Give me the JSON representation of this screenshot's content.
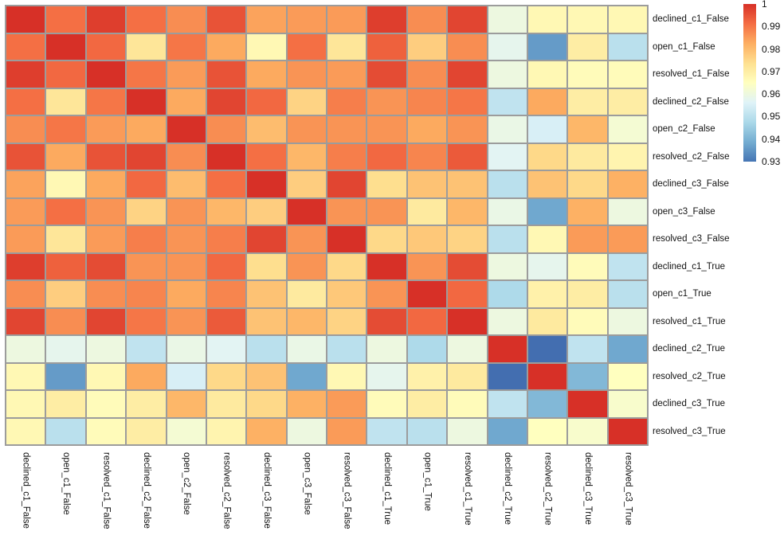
{
  "figure": {
    "background": "#ffffff",
    "grid_line_color": "#9c9c9c",
    "label_color": "#111111"
  },
  "chart_data": {
    "type": "heatmap",
    "title": "",
    "legend_position": "right",
    "grid": true,
    "x_labels": [
      "declined_c1_False",
      "open_c1_False",
      "resolved_c1_False",
      "declined_c2_False",
      "open_c2_False",
      "resolved_c2_False",
      "declined_c3_False",
      "open_c3_False",
      "resolved_c3_False",
      "declined_c1_True",
      "open_c1_True",
      "resolved_c1_True",
      "declined_c2_True",
      "resolved_c2_True",
      "declined_c3_True",
      "resolved_c3_True"
    ],
    "y_labels": [
      "declined_c1_False",
      "open_c1_False",
      "resolved_c1_False",
      "declined_c2_False",
      "open_c2_False",
      "resolved_c2_False",
      "declined_c3_False",
      "open_c3_False",
      "resolved_c3_False",
      "declined_c1_True",
      "open_c1_True",
      "resolved_c1_True",
      "declined_c2_True",
      "resolved_c2_True",
      "declined_c3_True",
      "resolved_c3_True"
    ],
    "matrix": [
      [
        1.0,
        0.991,
        0.998,
        0.991,
        0.987,
        0.995,
        0.984,
        0.985,
        0.985,
        0.998,
        0.987,
        0.997,
        0.96,
        0.967,
        0.967,
        0.967
      ],
      [
        0.991,
        1.0,
        0.992,
        0.972,
        0.99,
        0.983,
        0.967,
        0.991,
        0.972,
        0.993,
        0.977,
        0.987,
        0.958,
        0.936,
        0.97,
        0.95
      ],
      [
        0.998,
        0.992,
        1.0,
        0.99,
        0.985,
        0.995,
        0.983,
        0.986,
        0.985,
        0.996,
        0.987,
        0.997,
        0.96,
        0.967,
        0.966,
        0.966
      ],
      [
        0.991,
        0.972,
        0.99,
        1.0,
        0.983,
        0.997,
        0.992,
        0.976,
        0.989,
        0.986,
        0.988,
        0.99,
        0.951,
        0.983,
        0.97,
        0.97
      ],
      [
        0.987,
        0.99,
        0.985,
        0.983,
        1.0,
        0.987,
        0.98,
        0.986,
        0.986,
        0.986,
        0.983,
        0.986,
        0.959,
        0.955,
        0.981,
        0.962
      ],
      [
        0.995,
        0.983,
        0.995,
        0.997,
        0.987,
        1.0,
        0.991,
        0.981,
        0.989,
        0.992,
        0.988,
        0.994,
        0.957,
        0.975,
        0.971,
        0.968
      ],
      [
        0.984,
        0.967,
        0.983,
        0.992,
        0.98,
        0.991,
        1.0,
        0.977,
        0.997,
        0.974,
        0.979,
        0.979,
        0.95,
        0.979,
        0.975,
        0.982
      ],
      [
        0.985,
        0.991,
        0.986,
        0.976,
        0.986,
        0.981,
        0.977,
        1.0,
        0.986,
        0.986,
        0.971,
        0.981,
        0.959,
        0.938,
        0.982,
        0.96
      ],
      [
        0.985,
        0.972,
        0.985,
        0.989,
        0.986,
        0.989,
        0.997,
        0.986,
        1.0,
        0.975,
        0.978,
        0.976,
        0.95,
        0.967,
        0.985,
        0.985
      ],
      [
        0.998,
        0.993,
        0.996,
        0.986,
        0.986,
        0.992,
        0.974,
        0.986,
        0.975,
        1.0,
        0.986,
        0.996,
        0.96,
        0.958,
        0.966,
        0.951
      ],
      [
        0.987,
        0.977,
        0.987,
        0.988,
        0.983,
        0.988,
        0.979,
        0.971,
        0.978,
        0.986,
        1.0,
        0.992,
        0.948,
        0.969,
        0.97,
        0.95
      ],
      [
        0.997,
        0.987,
        0.997,
        0.99,
        0.986,
        0.994,
        0.979,
        0.981,
        0.976,
        0.996,
        0.992,
        1.0,
        0.96,
        0.971,
        0.966,
        0.96
      ],
      [
        0.96,
        0.958,
        0.96,
        0.951,
        0.959,
        0.957,
        0.95,
        0.959,
        0.95,
        0.96,
        0.948,
        0.96,
        1.0,
        0.929,
        0.951,
        0.938
      ],
      [
        0.967,
        0.936,
        0.967,
        0.983,
        0.955,
        0.975,
        0.979,
        0.938,
        0.967,
        0.958,
        0.969,
        0.971,
        0.929,
        1.0,
        0.941,
        0.965
      ],
      [
        0.967,
        0.97,
        0.966,
        0.97,
        0.981,
        0.971,
        0.975,
        0.982,
        0.985,
        0.966,
        0.97,
        0.966,
        0.951,
        0.941,
        1.0,
        0.963
      ],
      [
        0.967,
        0.95,
        0.966,
        0.97,
        0.962,
        0.968,
        0.982,
        0.96,
        0.985,
        0.951,
        0.95,
        0.96,
        0.938,
        0.965,
        0.963,
        1.0
      ]
    ],
    "colorbar": {
      "vmin": 0.93,
      "vmax": 1.0,
      "tick_values": [
        1,
        0.99,
        0.98,
        0.97,
        0.96,
        0.95,
        0.94,
        0.93
      ],
      "tick_labels": [
        "1",
        "0.99",
        "0.98",
        "0.97",
        "0.96",
        "0.95",
        "0.94",
        "0.93"
      ]
    },
    "colormap": {
      "name": "RdYlBu_r",
      "stops_low_to_high": [
        "#313695",
        "#4575b4",
        "#74add1",
        "#abd9e9",
        "#e0f3f8",
        "#ffffbf",
        "#fee090",
        "#fdae61",
        "#f46d43",
        "#d73027",
        "#a50026"
      ]
    }
  }
}
